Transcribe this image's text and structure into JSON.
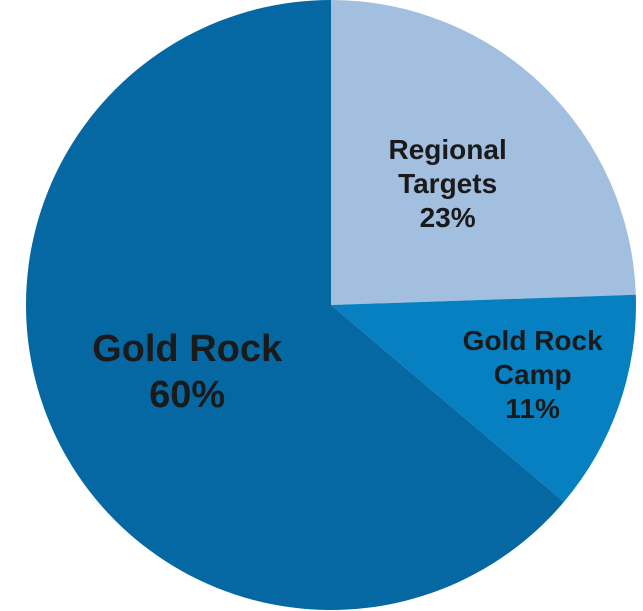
{
  "chart_data": {
    "type": "pie",
    "title": "",
    "slices": [
      {
        "category": "Regional Targets",
        "label_lines": [
          "Regional",
          "Targets"
        ],
        "value": 23,
        "value_label": "23%",
        "color": "#A2BFDF"
      },
      {
        "category": "Gold Rock Camp",
        "label_lines": [
          "Gold Rock",
          "Camp"
        ],
        "value": 11,
        "value_label": "11%",
        "color": "#0780C2"
      },
      {
        "category": "Gold Rock",
        "label_lines": [
          "Gold Rock"
        ],
        "value": 60,
        "value_label": "60%",
        "color": "#0568A2"
      }
    ],
    "legend": "none",
    "data_label_color": "#1A1A1A"
  }
}
